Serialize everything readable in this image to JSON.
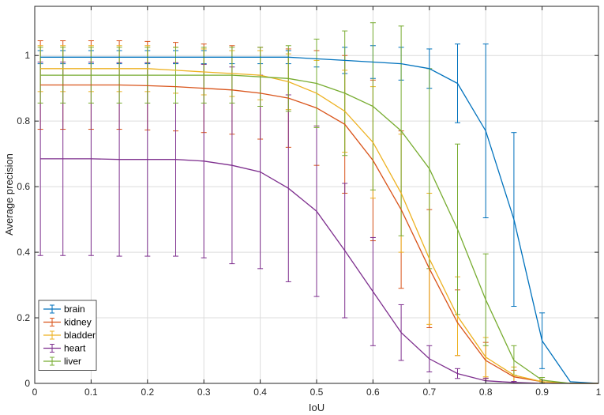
{
  "chart_data": {
    "type": "line",
    "title": "",
    "xlabel": "IoU",
    "ylabel": "Average precision",
    "xlim": [
      0,
      1
    ],
    "ylim": [
      0,
      1.15
    ],
    "xticks": [
      "0",
      "0.1",
      "0.2",
      "0.3",
      "0.4",
      "0.5",
      "0.6",
      "0.7",
      "0.8",
      "0.9",
      "1"
    ],
    "yticks": [
      "0",
      "0.2",
      "0.4",
      "0.6",
      "0.8",
      "1"
    ],
    "grid": true,
    "legend_position": "bottom-left",
    "x": [
      0.01,
      0.05,
      0.1,
      0.15,
      0.2,
      0.25,
      0.3,
      0.35,
      0.4,
      0.45,
      0.5,
      0.55,
      0.6,
      0.65,
      0.7,
      0.75,
      0.8,
      0.85,
      0.9,
      0.95,
      1.0
    ],
    "series": [
      {
        "name": "brain",
        "color": "#0072BD",
        "values": [
          0.995,
          0.995,
          0.995,
          0.995,
          0.995,
          0.995,
          0.995,
          0.995,
          0.995,
          0.995,
          0.99,
          0.985,
          0.98,
          0.975,
          0.96,
          0.915,
          0.77,
          0.5,
          0.13,
          0.005,
          0.0
        ],
        "errors": [
          0.02,
          0.02,
          0.02,
          0.02,
          0.02,
          0.02,
          0.02,
          0.02,
          0.02,
          0.02,
          0.025,
          0.04,
          0.05,
          0.05,
          0.06,
          0.12,
          0.265,
          0.265,
          0.085,
          0.0,
          0.0
        ]
      },
      {
        "name": "kidney",
        "color": "#D95319",
        "values": [
          0.91,
          0.91,
          0.91,
          0.91,
          0.908,
          0.905,
          0.9,
          0.895,
          0.885,
          0.87,
          0.84,
          0.79,
          0.68,
          0.53,
          0.35,
          0.185,
          0.07,
          0.02,
          0.005,
          0.0,
          0.0
        ],
        "errors": [
          0.135,
          0.135,
          0.135,
          0.135,
          0.135,
          0.135,
          0.135,
          0.135,
          0.14,
          0.15,
          0.175,
          0.21,
          0.245,
          0.24,
          0.18,
          0.1,
          0.055,
          0.02,
          0.005,
          0.0,
          0.0
        ]
      },
      {
        "name": "bladder",
        "color": "#EDB120",
        "values": [
          0.96,
          0.96,
          0.96,
          0.96,
          0.96,
          0.955,
          0.95,
          0.945,
          0.94,
          0.92,
          0.885,
          0.83,
          0.735,
          0.58,
          0.38,
          0.205,
          0.08,
          0.025,
          0.005,
          0.0,
          0.0
        ],
        "errors": [
          0.07,
          0.07,
          0.07,
          0.07,
          0.07,
          0.07,
          0.07,
          0.07,
          0.075,
          0.085,
          0.1,
          0.125,
          0.17,
          0.18,
          0.2,
          0.12,
          0.06,
          0.025,
          0.005,
          0.0,
          0.0
        ]
      },
      {
        "name": "heart",
        "color": "#7E2F8E",
        "values": [
          0.685,
          0.685,
          0.685,
          0.683,
          0.683,
          0.683,
          0.678,
          0.665,
          0.645,
          0.595,
          0.525,
          0.405,
          0.28,
          0.155,
          0.075,
          0.03,
          0.008,
          0.003,
          0.0,
          0.0,
          0.0
        ],
        "errors": [
          0.295,
          0.295,
          0.295,
          0.295,
          0.295,
          0.295,
          0.295,
          0.3,
          0.295,
          0.285,
          0.26,
          0.205,
          0.165,
          0.085,
          0.04,
          0.015,
          0.008,
          0.003,
          0.0,
          0.0,
          0.0
        ]
      },
      {
        "name": "liver",
        "color": "#77AC30",
        "values": [
          0.94,
          0.94,
          0.94,
          0.94,
          0.94,
          0.94,
          0.94,
          0.94,
          0.935,
          0.93,
          0.915,
          0.885,
          0.845,
          0.77,
          0.655,
          0.47,
          0.255,
          0.07,
          0.01,
          0.0,
          0.0
        ],
        "errors": [
          0.085,
          0.085,
          0.085,
          0.085,
          0.085,
          0.085,
          0.085,
          0.085,
          0.09,
          0.1,
          0.135,
          0.19,
          0.255,
          0.32,
          0.305,
          0.26,
          0.14,
          0.045,
          0.008,
          0.0,
          0.0
        ]
      }
    ]
  }
}
